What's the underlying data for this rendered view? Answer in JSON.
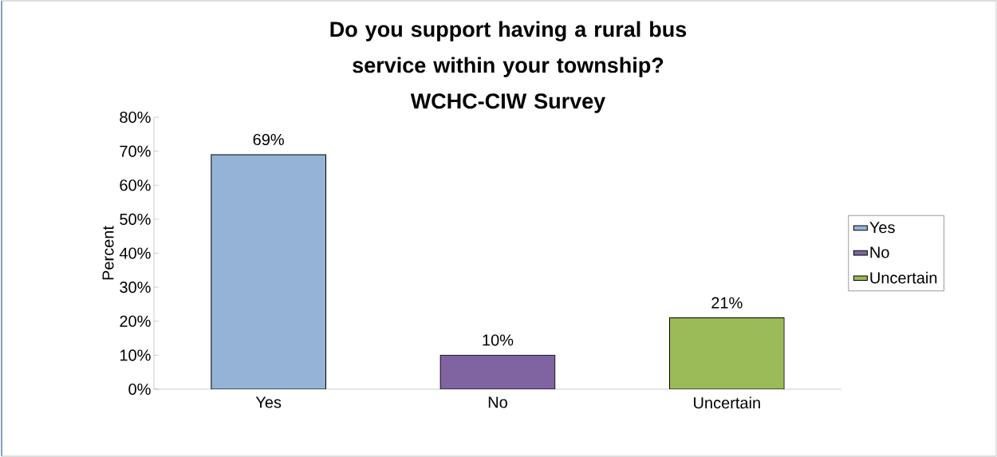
{
  "chart_data": {
    "type": "bar",
    "title": "Do you support having a rural bus service within your township?",
    "subtitle": "WCHC-CIW Survey",
    "ylabel": "Percent",
    "categories": [
      "Yes",
      "No",
      "Uncertain"
    ],
    "series": [
      {
        "name": "Yes",
        "color": "#95b3d7",
        "values": [
          69,
          null,
          null
        ],
        "value_labels": [
          "69%",
          null,
          null
        ]
      },
      {
        "name": "No",
        "color": "#8064a2",
        "values": [
          null,
          10,
          null
        ],
        "value_labels": [
          null,
          "10%",
          null
        ]
      },
      {
        "name": "Uncertain",
        "color": "#9bbb59",
        "values": [
          null,
          null,
          21
        ],
        "value_labels": [
          null,
          null,
          "21%"
        ]
      }
    ],
    "ylim": [
      0,
      80
    ],
    "yticks": [
      {
        "value": 0,
        "label": "0%"
      },
      {
        "value": 10,
        "label": "10%"
      },
      {
        "value": 20,
        "label": "20%"
      },
      {
        "value": 30,
        "label": "30%"
      },
      {
        "value": 40,
        "label": "40%"
      },
      {
        "value": 50,
        "label": "50%"
      },
      {
        "value": 60,
        "label": "60%"
      },
      {
        "value": 70,
        "label": "70%"
      },
      {
        "value": 80,
        "label": "80%"
      }
    ],
    "legend": "right"
  }
}
